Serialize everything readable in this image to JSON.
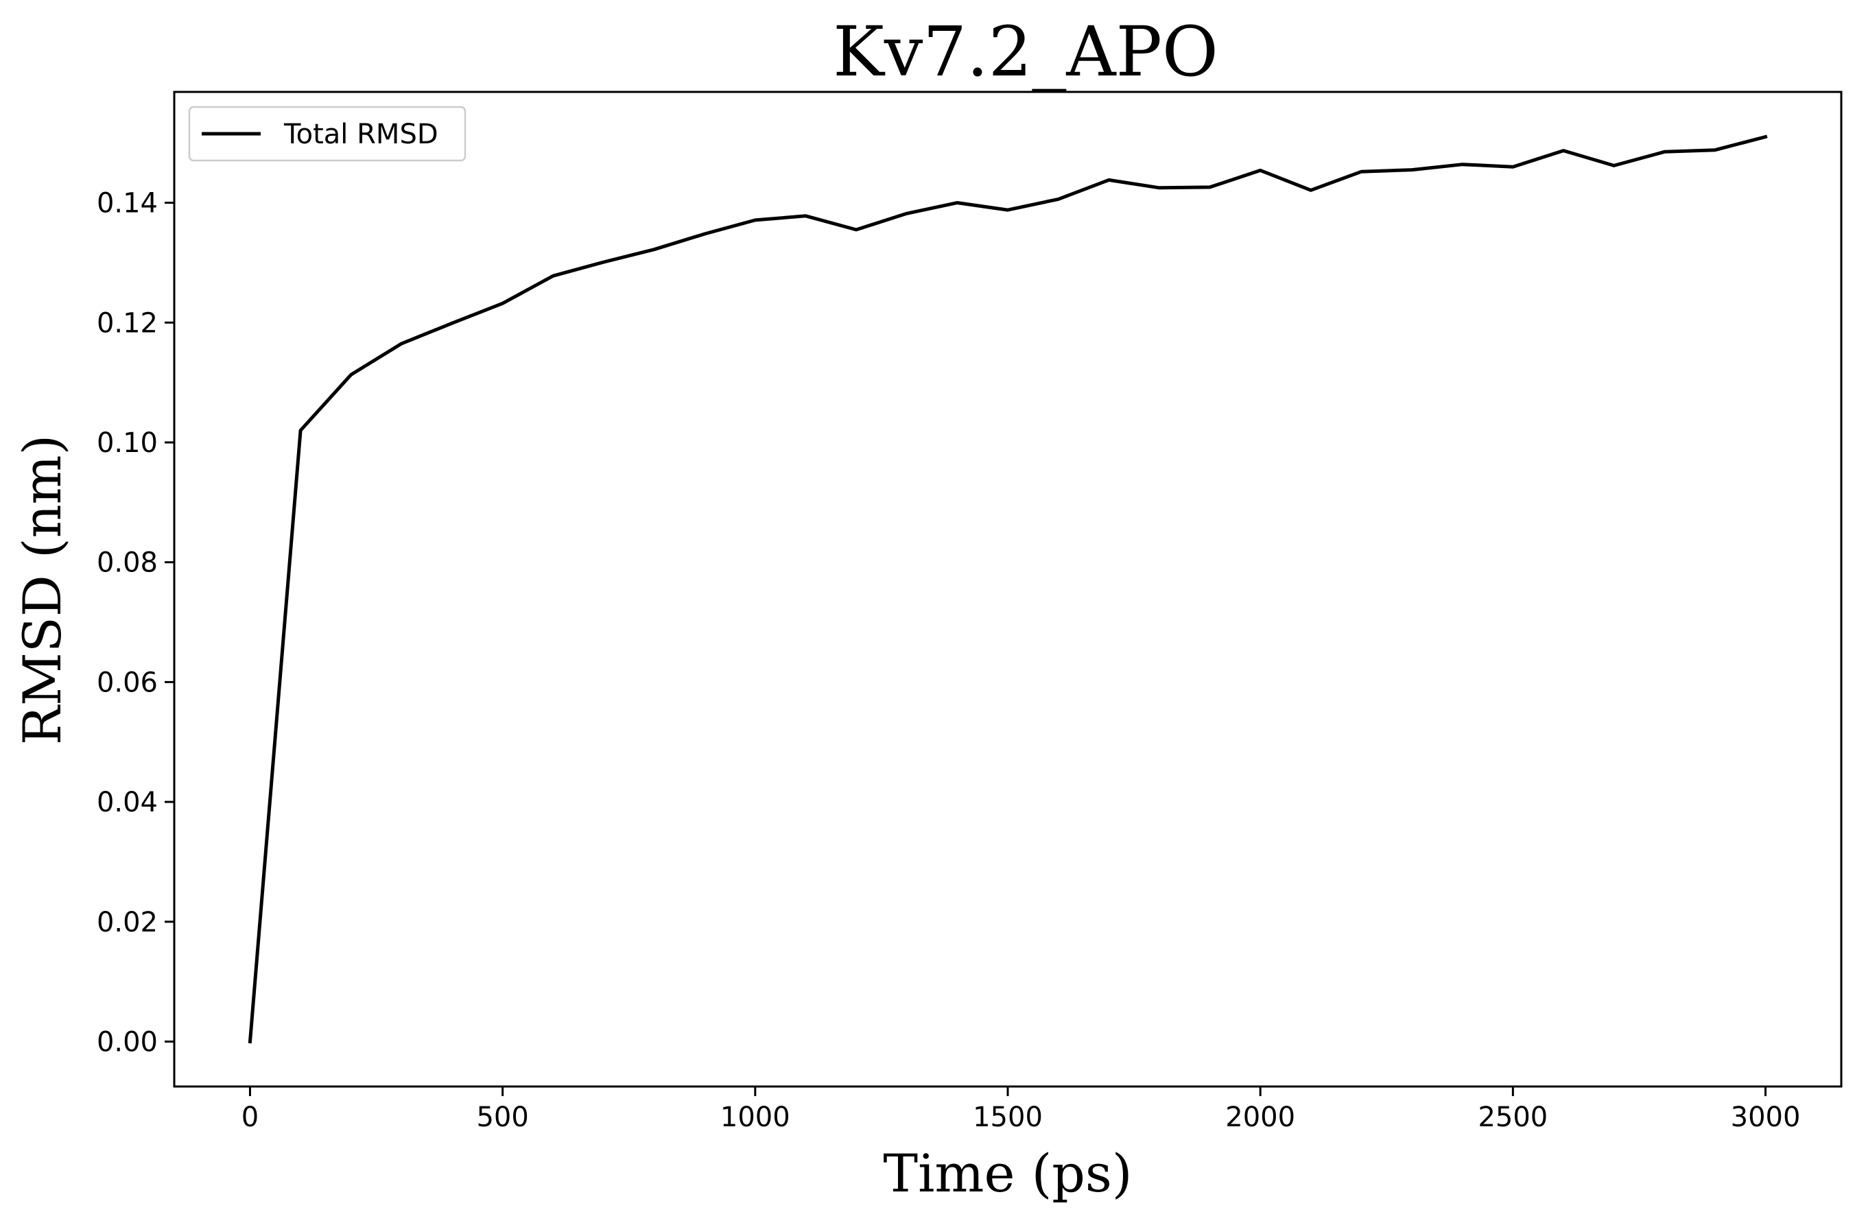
{
  "chart_data": {
    "type": "line",
    "title": "Kv7.2_APO",
    "xlabel": "Time (ps)",
    "ylabel": "RMSD (nm)",
    "xlim": [
      -150,
      3150
    ],
    "ylim": [
      -0.0075,
      0.1585
    ],
    "x_ticks": [
      0,
      500,
      1000,
      1500,
      2000,
      2500,
      3000
    ],
    "x_tick_labels": [
      "0",
      "500",
      "1000",
      "1500",
      "2000",
      "2500",
      "3000"
    ],
    "y_ticks": [
      0.0,
      0.02,
      0.04,
      0.06,
      0.08,
      0.1,
      0.12,
      0.14
    ],
    "y_tick_labels": [
      "0.00",
      "0.02",
      "0.04",
      "0.06",
      "0.08",
      "0.10",
      "0.12",
      "0.14"
    ],
    "grid": false,
    "legend_position": "top-left",
    "series": [
      {
        "name": "Total RMSD",
        "color": "#000000",
        "x": [
          0,
          100,
          200,
          300,
          400,
          500,
          600,
          700,
          800,
          900,
          1000,
          1100,
          1200,
          1300,
          1400,
          1500,
          1600,
          1700,
          1800,
          1900,
          2000,
          2100,
          2200,
          2300,
          2400,
          2500,
          2600,
          2700,
          2800,
          2900,
          3000
        ],
        "y": [
          0.0,
          0.102,
          0.1113,
          0.1165,
          0.1199,
          0.1232,
          0.1278,
          0.1301,
          0.1322,
          0.1348,
          0.1371,
          0.1378,
          0.1355,
          0.1382,
          0.14,
          0.1388,
          0.1406,
          0.1438,
          0.1425,
          0.1426,
          0.1454,
          0.1421,
          0.1452,
          0.1455,
          0.1464,
          0.146,
          0.1487,
          0.1462,
          0.1485,
          0.1488,
          0.151
        ]
      }
    ]
  }
}
